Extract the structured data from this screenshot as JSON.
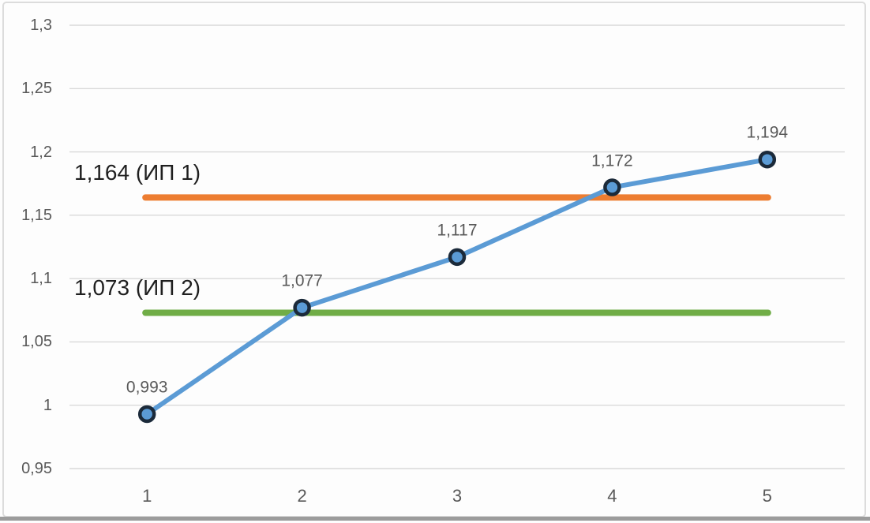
{
  "slide": {
    "background": "#fdfdfd",
    "frame_border_color": "#dcdcdc",
    "bottom_bar_color": "#9c9c9c"
  },
  "chart_data": {
    "type": "line",
    "title": "",
    "xlabel": "",
    "ylabel": "",
    "legend": "none",
    "grid": true,
    "gridline_color": "#d9d9d9",
    "label_color": "#595959",
    "ref_label_color": "#1f1f1f",
    "categories": [
      "1",
      "2",
      "3",
      "4",
      "5"
    ],
    "x": [
      1,
      2,
      3,
      4,
      5
    ],
    "series": [
      {
        "name": "series-1",
        "values": [
          0.993,
          1.077,
          1.117,
          1.172,
          1.194
        ],
        "point_labels": [
          "0,993",
          "1,077",
          "1,117",
          "1,172",
          "1,194"
        ],
        "color": "#5B9BD5",
        "marker_fill": "#5B9BD5",
        "marker_border": "#1B2A3A"
      }
    ],
    "ref_lines": [
      {
        "value": 1.164,
        "label": "1,164 (ИП 1)",
        "color": "#ED7D31"
      },
      {
        "value": 1.073,
        "label": "1,073 (ИП 2)",
        "color": "#70AD47"
      }
    ],
    "y_axis": {
      "min": 0.95,
      "max": 1.3,
      "ticks": [
        1.3,
        1.25,
        1.2,
        1.15,
        1.1,
        1.05,
        1.0,
        0.95
      ],
      "tick_labels": [
        "1,3",
        "1,25",
        "1,2",
        "1,15",
        "1,1",
        "1,05",
        "1",
        "0,95"
      ]
    },
    "x_axis": {
      "tick_labels": [
        "1",
        "2",
        "3",
        "4",
        "5"
      ]
    }
  }
}
